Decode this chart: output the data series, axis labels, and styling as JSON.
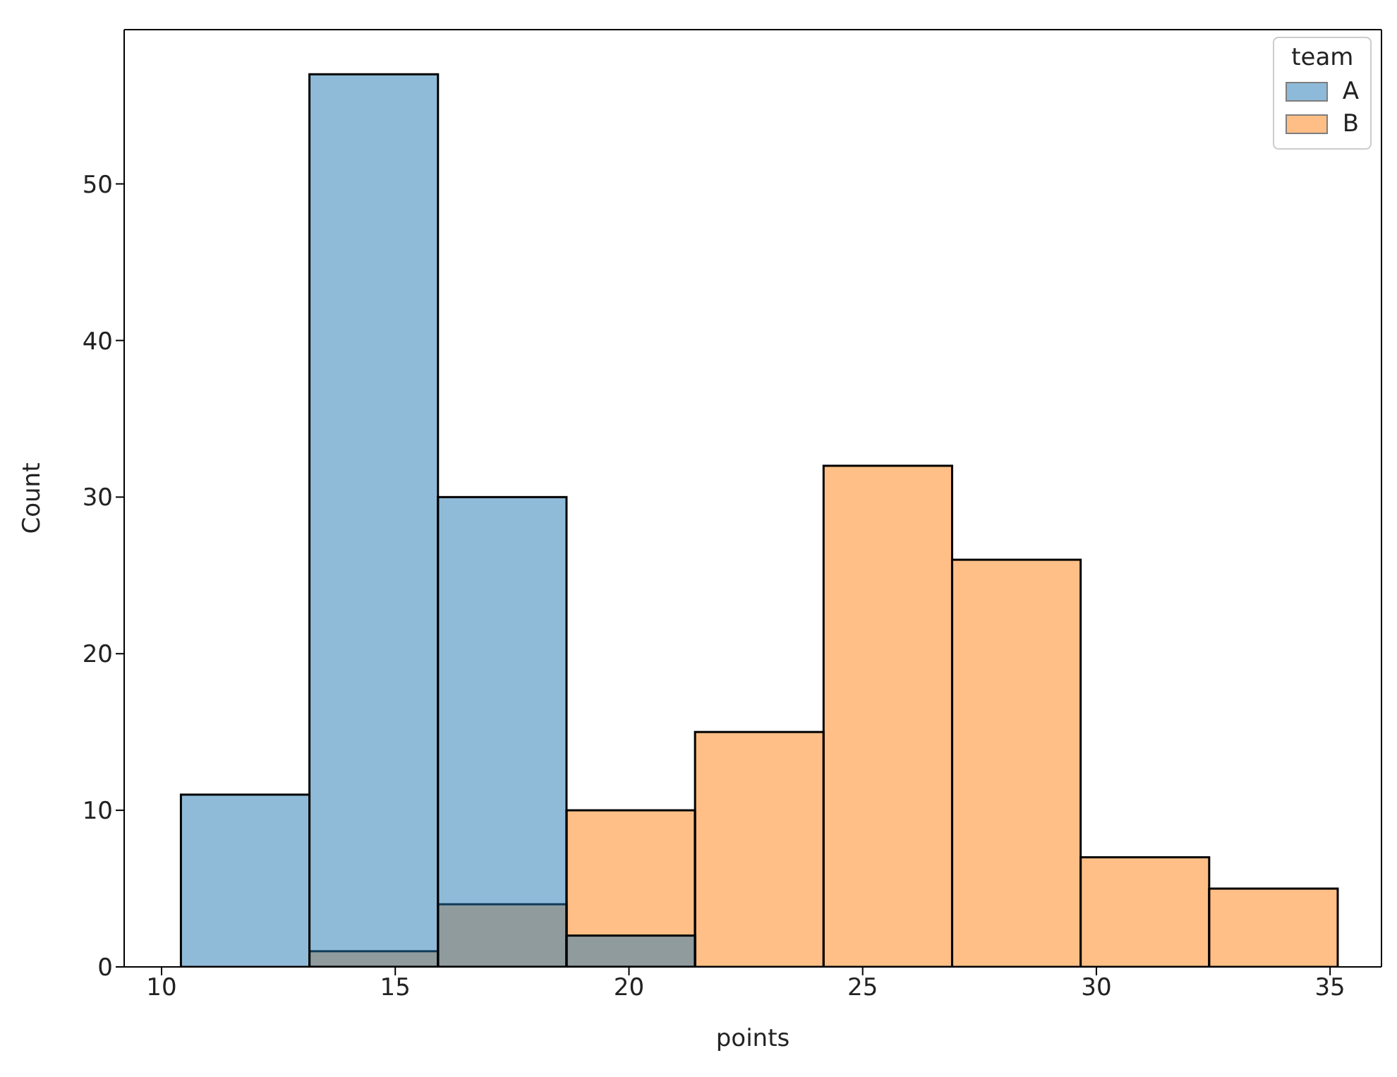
{
  "chart_data": {
    "type": "histogram",
    "xlabel": "points",
    "ylabel": "Count",
    "legend_title": "team",
    "legend": "top right",
    "grid": false,
    "bins": [
      10.4,
      13.15,
      15.9,
      18.65,
      21.4,
      24.15,
      26.9,
      29.65,
      32.4,
      35.15
    ],
    "series": [
      {
        "name": "A",
        "color": "#1f77b4",
        "values": [
          11,
          57,
          30,
          2,
          0,
          0,
          0,
          0,
          0
        ]
      },
      {
        "name": "B",
        "color": "#ff7f0e",
        "values": [
          0,
          1,
          4,
          10,
          15,
          32,
          26,
          7,
          5
        ]
      }
    ],
    "xlim": [
      9.2,
      36.1
    ],
    "xticks": [
      10,
      15,
      20,
      25,
      30,
      35
    ],
    "ylim": [
      0,
      59.85
    ],
    "yticks": [
      0,
      10,
      20,
      30,
      40,
      50
    ]
  }
}
